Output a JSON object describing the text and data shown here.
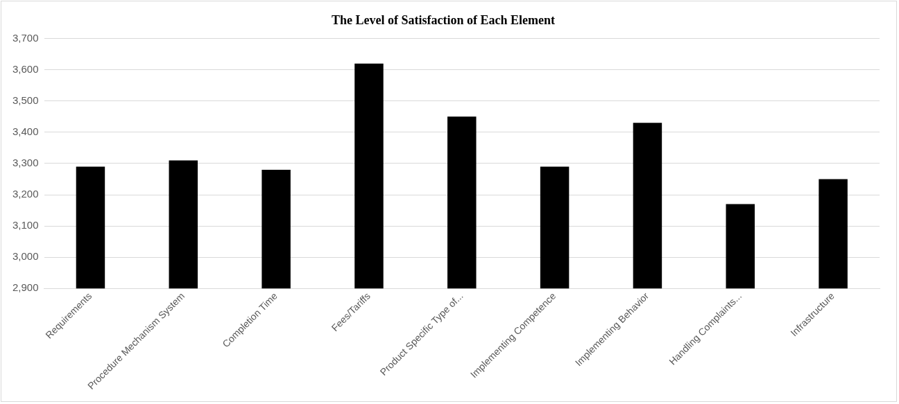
{
  "chart_data": {
    "type": "bar",
    "title": "The Level of Satisfaction of Each Element",
    "categories": [
      "Requirements",
      "Procedure Mechanism System",
      "Completion Time",
      "Fees/Tariffs",
      "Product Specific Type of...",
      "Implementing Competence",
      "Implementing Behavior",
      "Handling Complaints...",
      "Infrastructure"
    ],
    "values": [
      3290,
      3310,
      3280,
      3620,
      3450,
      3290,
      3430,
      3170,
      3250
    ],
    "color": "#000000",
    "ylim": [
      2900,
      3700
    ],
    "yticks": [
      {
        "value": 2900,
        "label": "2,900"
      },
      {
        "value": 3000,
        "label": "3,000"
      },
      {
        "value": 3100,
        "label": "3,100"
      },
      {
        "value": 3200,
        "label": "3,200"
      },
      {
        "value": 3300,
        "label": "3,300"
      },
      {
        "value": 3400,
        "label": "3,400"
      },
      {
        "value": 3500,
        "label": "3,500"
      },
      {
        "value": 3600,
        "label": "3,600"
      },
      {
        "value": 3700,
        "label": "3,700"
      }
    ],
    "grid": "y",
    "legend": false
  }
}
